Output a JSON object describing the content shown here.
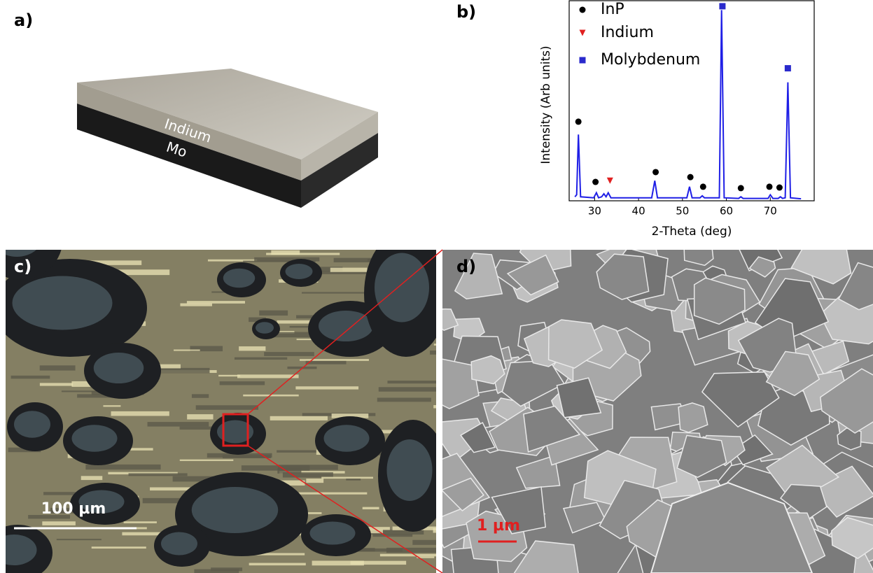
{
  "panels": {
    "a": "a)",
    "b": "b)",
    "c": "c)",
    "d": "d)"
  },
  "diagram": {
    "top_layer": "Indium",
    "bottom_layer": "Mo"
  },
  "chart_data": {
    "type": "line",
    "x_label": "2-Theta (deg)",
    "y_label": "Intensity (Arb units)",
    "xlim": [
      24.2,
      80
    ],
    "ylim": [
      0,
      100
    ],
    "xticks": [
      30,
      40,
      50,
      60,
      70
    ],
    "line": {
      "color": "#1f1fe6",
      "x": [
        25.5,
        25.9,
        26.3,
        26.8,
        29.8,
        30.4,
        30.9,
        31.6,
        32.1,
        32.6,
        33.1,
        33.7,
        43.0,
        43.7,
        44.3,
        51.0,
        51.6,
        52.2,
        54.0,
        54.5,
        55.0,
        58.4,
        58.9,
        59.5,
        62.8,
        63.3,
        63.8,
        69.5,
        70.0,
        70.6,
        71.8,
        72.3,
        72.8,
        73.4,
        74.0,
        74.6,
        77.0
      ],
      "values": [
        2,
        3,
        33,
        2,
        1.5,
        4,
        1.5,
        2,
        3.5,
        2,
        4,
        1.5,
        1.5,
        10,
        1.5,
        1.5,
        7,
        1.5,
        1.5,
        2.5,
        1.5,
        1.5,
        95,
        1.5,
        1.2,
        2,
        1.2,
        1.2,
        3,
        1.2,
        1.2,
        2,
        1.2,
        1.5,
        59,
        1.5,
        1
      ]
    },
    "series": [
      {
        "name": "InP",
        "color": "#000000",
        "marker": "circle",
        "x": [
          26.3,
          30.2,
          43.9,
          51.8,
          54.7,
          63.3,
          69.8,
          72.1
        ],
        "values": [
          39.4,
          9.4,
          14.3,
          11.8,
          7,
          6.3,
          7,
          6.6
        ]
      },
      {
        "name": "Indium",
        "color": "#e02020",
        "marker": "triangle",
        "x": [
          33.5
        ],
        "values": [
          10
        ]
      },
      {
        "name": "Molybdenum",
        "color": "#2a2acc",
        "marker": "square",
        "x": [
          59.1,
          74.0
        ],
        "values": [
          96.9,
          66
        ]
      }
    ]
  },
  "micrograph": {
    "scale_bar": "100 µm"
  },
  "sem": {
    "scale_bar": "1 µm"
  }
}
